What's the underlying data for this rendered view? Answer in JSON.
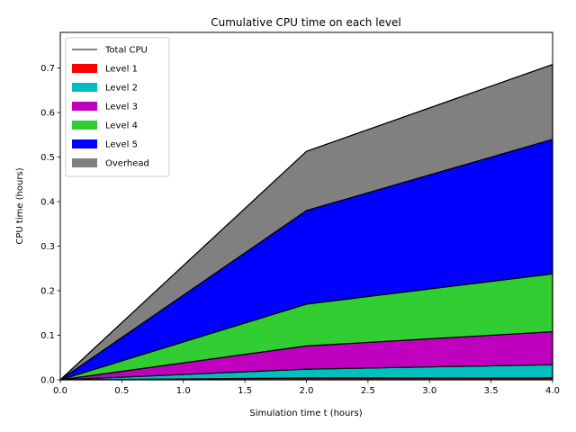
{
  "chart_data": {
    "type": "area",
    "title": "Cumulative CPU time on each level",
    "xlabel": "Simulation time t (hours)",
    "ylabel": "CPU time (hours)",
    "xlim": [
      0.0,
      4.0
    ],
    "ylim": [
      0.0,
      0.78
    ],
    "xticks": [
      "0.0",
      "0.5",
      "1.0",
      "1.5",
      "2.0",
      "2.5",
      "3.0",
      "3.5",
      "4.0"
    ],
    "yticks": [
      "0.0",
      "0.1",
      "0.2",
      "0.3",
      "0.4",
      "0.5",
      "0.6",
      "0.7"
    ],
    "grid": false,
    "legend_position": "upper-left",
    "stacked": true,
    "x": [
      0.0,
      2.0,
      4.0
    ],
    "series": [
      {
        "name": "Level 1",
        "color": "#ff0000",
        "values": [
          0.0,
          0.004,
          0.004
        ]
      },
      {
        "name": "Level 2",
        "color": "#00bfbf",
        "values": [
          0.0,
          0.02,
          0.03
        ]
      },
      {
        "name": "Level 3",
        "color": "#bf00bf",
        "values": [
          0.0,
          0.052,
          0.074
        ]
      },
      {
        "name": "Level 4",
        "color": "#32cd32",
        "values": [
          0.0,
          0.094,
          0.13
        ]
      },
      {
        "name": "Level 5",
        "color": "#0000ff",
        "values": [
          0.0,
          0.21,
          0.302
        ]
      },
      {
        "name": "Overhead",
        "color": "#808080",
        "values": [
          0.0,
          0.133,
          0.168
        ]
      }
    ],
    "total": {
      "name": "Total CPU",
      "color": "#000000",
      "values": [
        0.0,
        0.513,
        0.708
      ]
    }
  }
}
